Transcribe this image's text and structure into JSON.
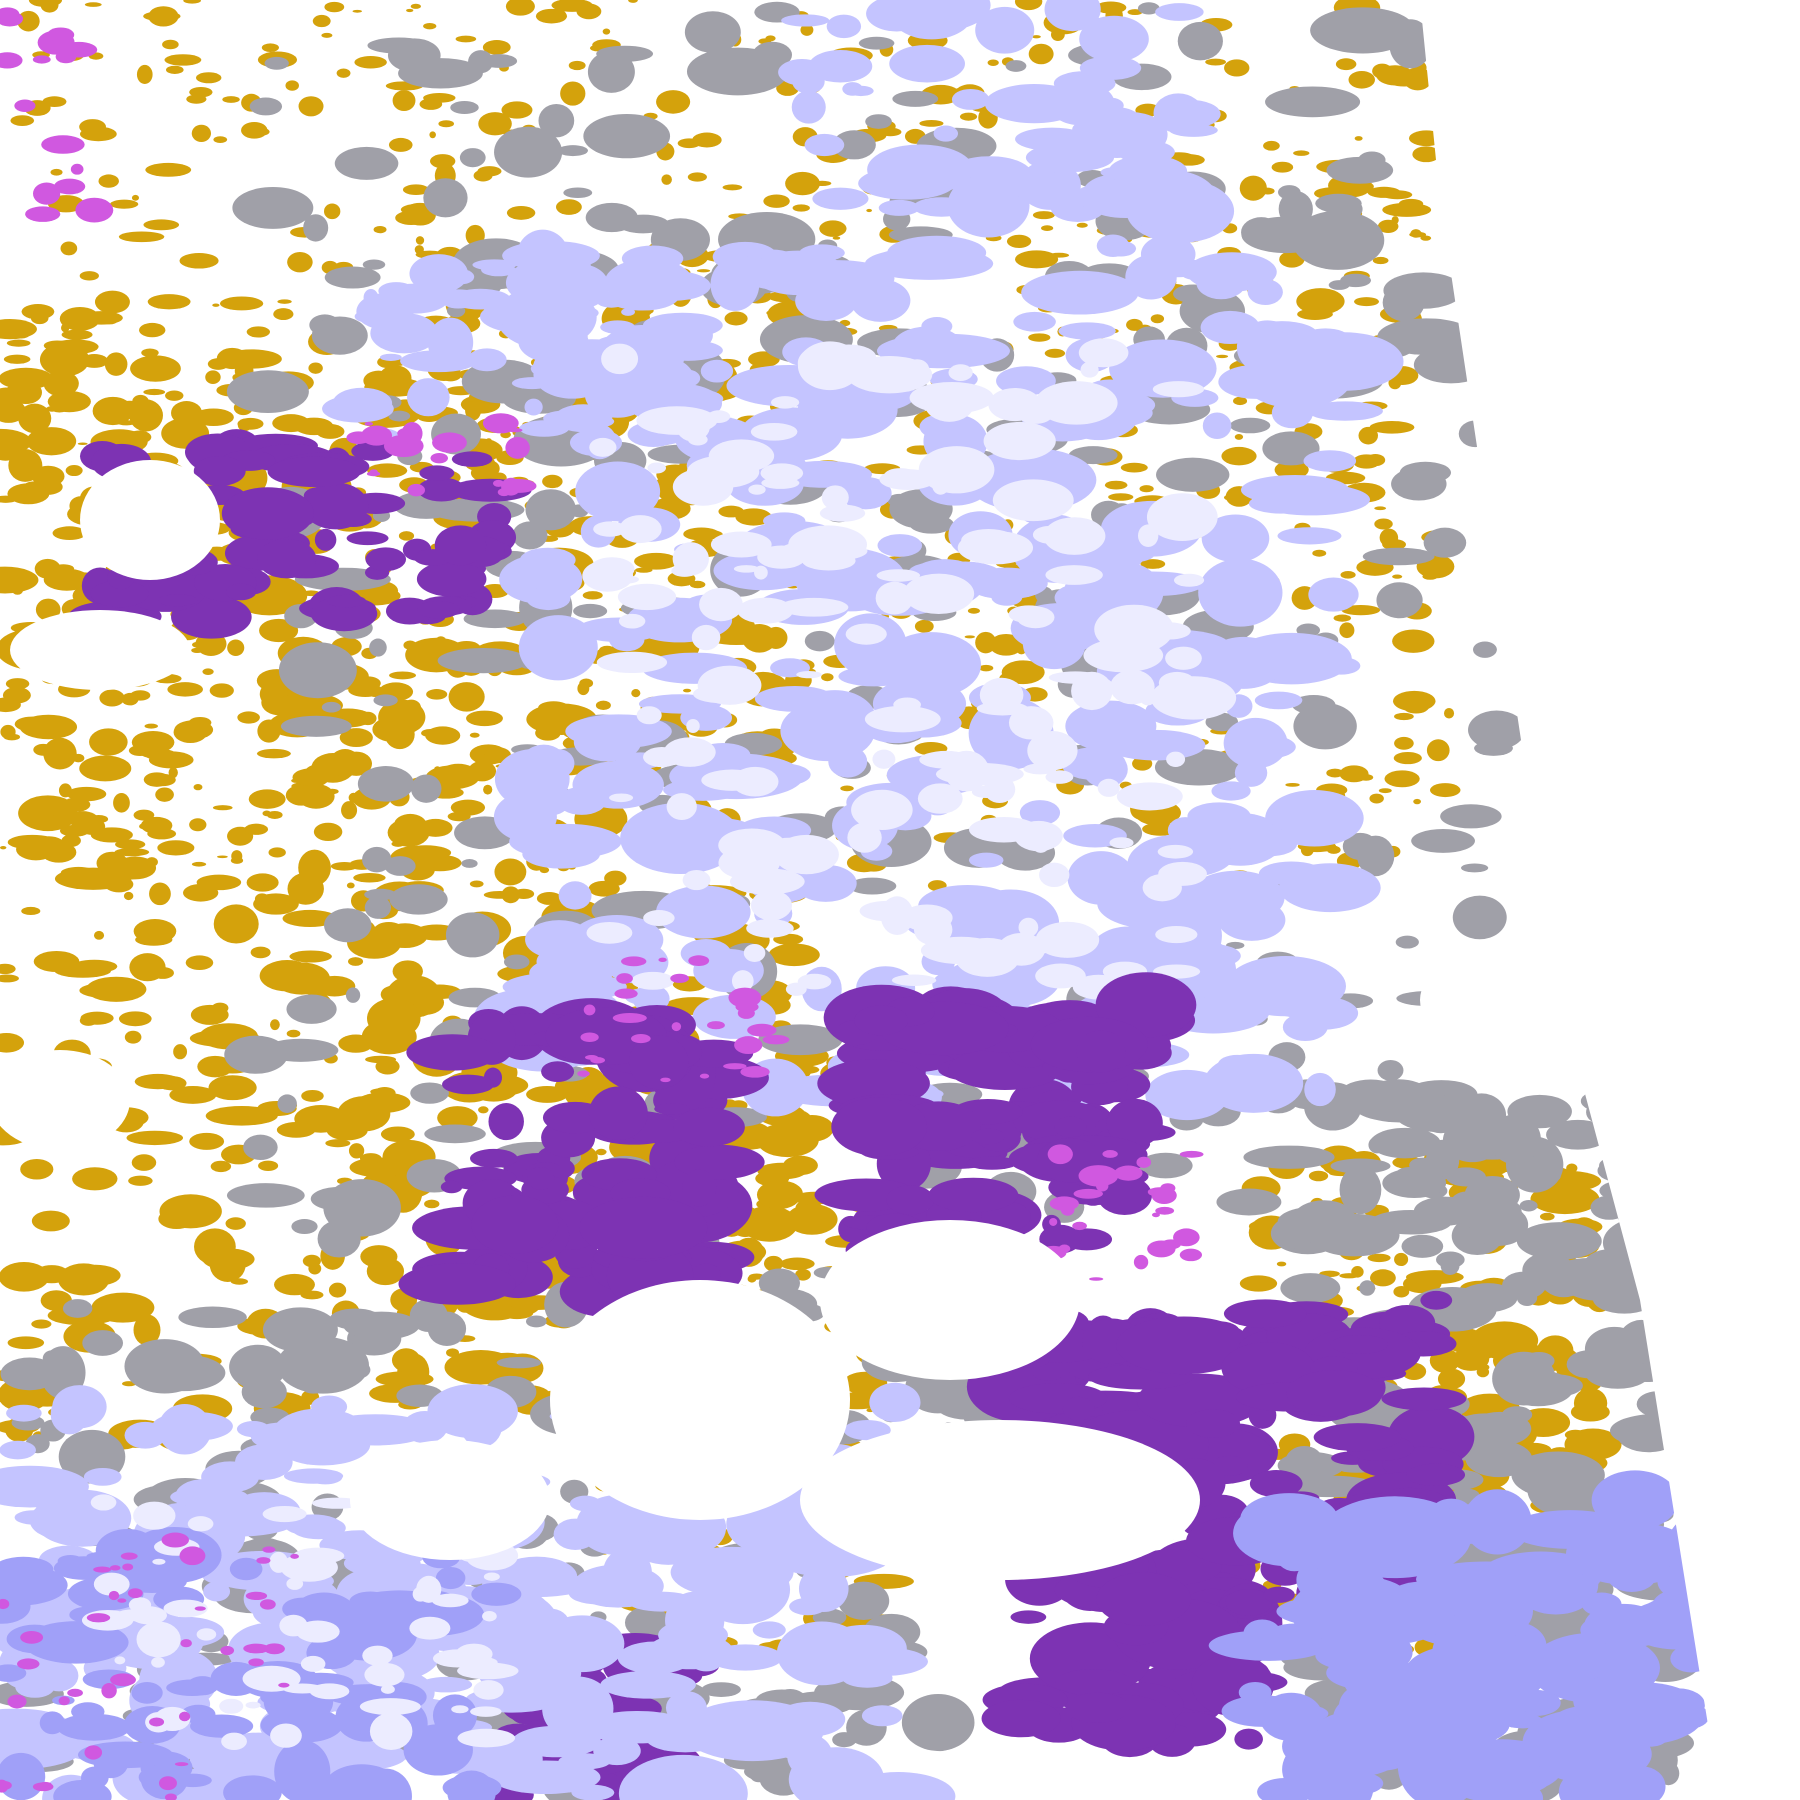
{
  "map": {
    "background": "#ffffff",
    "classes": [
      {
        "key": "gold",
        "color": "#d4a20c"
      },
      {
        "key": "purple",
        "color": "#7d33b3"
      },
      {
        "key": "magenta",
        "color": "#d058e0"
      },
      {
        "key": "gray",
        "color": "#a0a0a8"
      },
      {
        "key": "lavender",
        "color": "#c4c4ff"
      },
      {
        "key": "blue-lavender",
        "color": "#a0a0f8"
      },
      {
        "key": "pale",
        "color": "#ececff"
      }
    ]
  }
}
